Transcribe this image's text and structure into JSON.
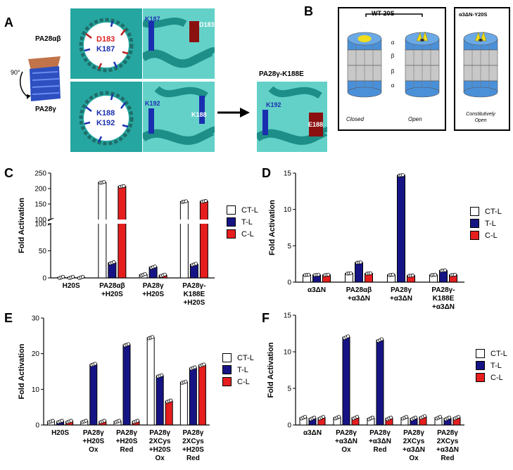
{
  "panel_letters": {
    "a": "A",
    "b": "B",
    "c": "C",
    "d": "D",
    "e": "E",
    "f": "F"
  },
  "panel_a": {
    "label_pa28ab": "PA28αβ",
    "label_pa28g": "PA28γ",
    "rotation": "90°",
    "top_left": [
      "D183",
      "K187"
    ],
    "top_right": [
      "K187",
      "D183"
    ],
    "bottom_left": [
      "K188",
      "K192"
    ],
    "bottom_right": [
      "K192",
      "K188"
    ],
    "mutant_title": "PA28γ-K188E",
    "mutant_labels": [
      "K192",
      "E188"
    ]
  },
  "panel_b": {
    "wt_title": "WT 20S",
    "mut_title": "α3ΔN-Y20S",
    "rings": [
      "α",
      "β",
      "β",
      "α"
    ],
    "captions": [
      "Closed",
      "Open",
      "Constitutively Open"
    ],
    "colors": {
      "ring": "#4a90d9",
      "core": "#c8c8c8",
      "gate": "#f1dd1c"
    }
  },
  "legend": {
    "items": [
      "CT-L",
      "T-L",
      "C-L"
    ],
    "colors": [
      "#ffffff",
      "#161485",
      "#e61e1e"
    ]
  },
  "chart_data": [
    {
      "type": "bar",
      "panel": "C",
      "ylabel": "Fold Activation",
      "broken_axis": true,
      "ylim_lower": [
        0,
        100
      ],
      "ylim_upper": [
        100,
        250
      ],
      "yticks": [
        "0",
        "50",
        "100",
        "150",
        "200",
        "250"
      ],
      "categories": [
        [
          "H20S"
        ],
        [
          "PA28αβ",
          "+H20S"
        ],
        [
          "PA28γ",
          "+H20S"
        ],
        [
          "PA28γ-",
          "K188E",
          "+H20S"
        ]
      ],
      "series": [
        {
          "name": "CT-L",
          "values": [
            1,
            220,
            6,
            158
          ]
        },
        {
          "name": "T-L",
          "values": [
            1,
            28,
            20,
            25
          ]
        },
        {
          "name": "C-L",
          "values": [
            1,
            207,
            5,
            159
          ]
        }
      ]
    },
    {
      "type": "bar",
      "panel": "D",
      "ylabel": "Fold Activation",
      "ylim": [
        0,
        15
      ],
      "yticks": [
        "0",
        "5",
        "10",
        "15"
      ],
      "categories": [
        [
          "α3ΔN"
        ],
        [
          "PA28αβ",
          "+α3ΔN"
        ],
        [
          "PA28γ",
          "+α3ΔN"
        ],
        [
          "PA28γ-",
          "K188E",
          "+α3ΔN"
        ]
      ],
      "series": [
        {
          "name": "CT-L",
          "values": [
            1,
            1.2,
            1,
            1
          ]
        },
        {
          "name": "T-L",
          "values": [
            1,
            2.7,
            14.7,
            1.6
          ]
        },
        {
          "name": "C-L",
          "values": [
            1,
            1.2,
            0.9,
            1
          ]
        }
      ]
    },
    {
      "type": "bar",
      "panel": "E",
      "ylabel": "Fold Activation",
      "ylim": [
        0,
        30
      ],
      "yticks": [
        "0",
        "10",
        "20",
        "30"
      ],
      "categories": [
        [
          "H20S"
        ],
        [
          "PA28γ",
          "+H20S",
          "Ox"
        ],
        [
          "PA28γ",
          "+H20S",
          "Red"
        ],
        [
          "PA28γ",
          "2XCys",
          "+H20S",
          "Ox"
        ],
        [
          "PA28γ",
          "2XCys",
          "+H20S",
          "Red"
        ]
      ],
      "series": [
        {
          "name": "CT-L",
          "values": [
            1,
            1,
            1,
            24.5,
            12
          ]
        },
        {
          "name": "T-L",
          "values": [
            1,
            17,
            22.5,
            13.8,
            16
          ]
        },
        {
          "name": "C-L",
          "values": [
            1,
            1,
            1,
            6.7,
            16.8
          ]
        }
      ]
    },
    {
      "type": "bar",
      "panel": "F",
      "ylabel": "Fold Activation",
      "ylim": [
        0,
        15
      ],
      "yticks": [
        "0",
        "5",
        "10",
        "15"
      ],
      "categories": [
        [
          "α3ΔN"
        ],
        [
          "PA28γ",
          "+α3ΔN",
          "Ox"
        ],
        [
          "PA28γ",
          "+α3ΔN",
          "Red"
        ],
        [
          "PA28γ",
          "2XCys",
          "+α3ΔN",
          "Ox"
        ],
        [
          "PA28γ",
          "2XCys",
          "+α3ΔN",
          "Red"
        ]
      ],
      "series": [
        {
          "name": "CT-L",
          "values": [
            1,
            1,
            0.9,
            1,
            1
          ]
        },
        {
          "name": "T-L",
          "values": [
            0.9,
            12,
            11.6,
            0.9,
            0.9
          ]
        },
        {
          "name": "C-L",
          "values": [
            1,
            1,
            0.9,
            1.1,
            1
          ]
        }
      ]
    }
  ]
}
